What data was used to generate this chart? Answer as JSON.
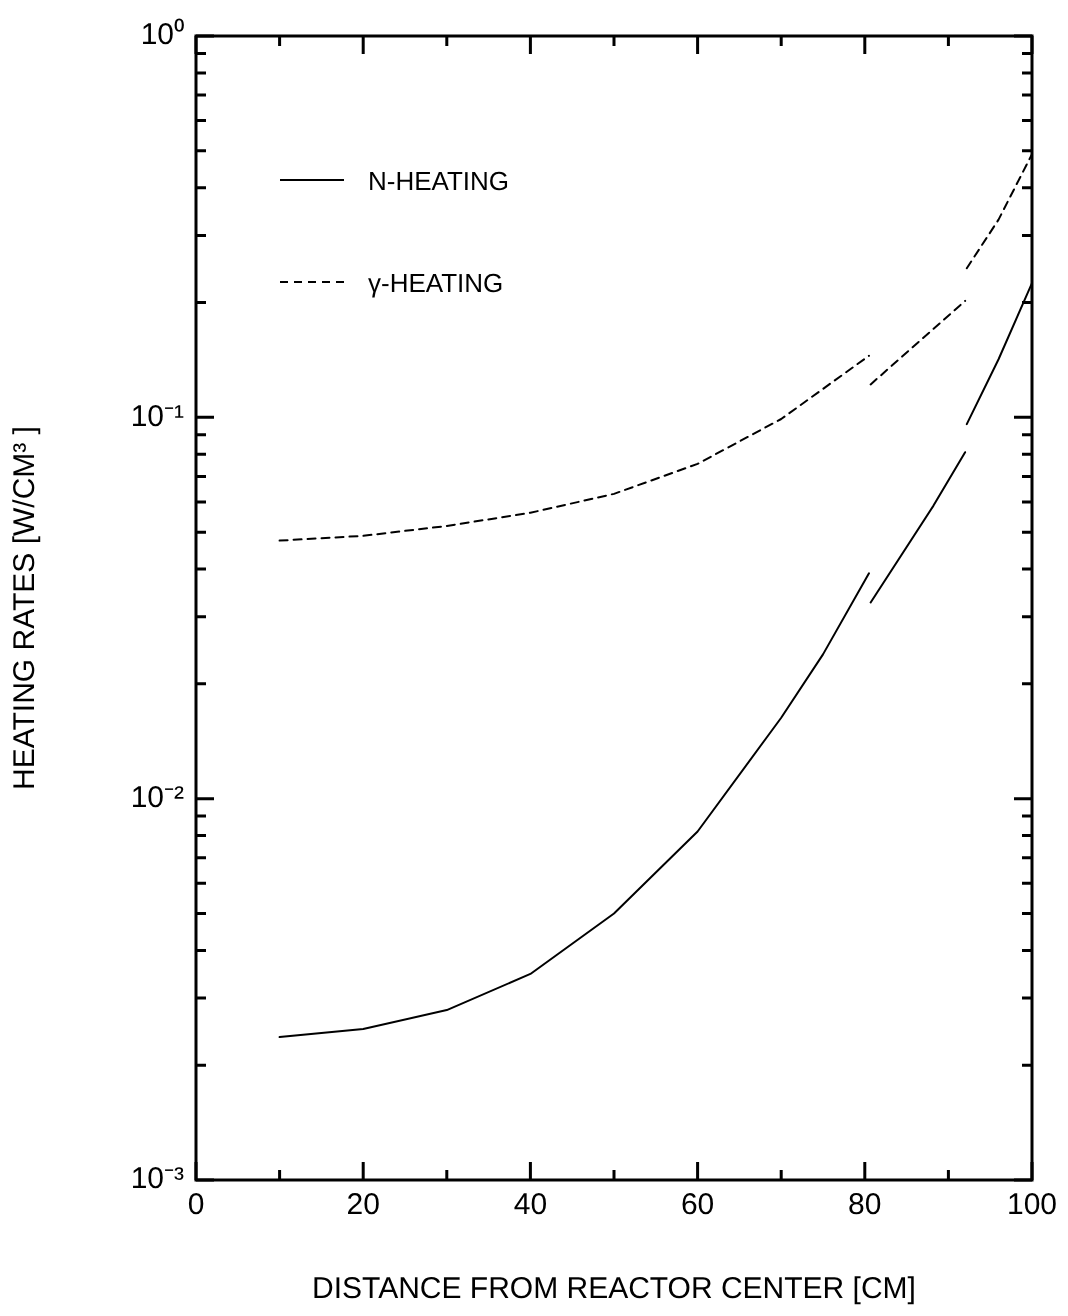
{
  "chart_data": {
    "type": "line",
    "xlabel": "DISTANCE FROM REACTOR CENTER [CM]",
    "ylabel": "HEATING RATES [W/CM³ ]",
    "xlim": [
      0,
      100
    ],
    "xticks": [
      0,
      {
        "value": 10,
        "label": null
      },
      20,
      {
        "value": 30,
        "label": null
      },
      40,
      {
        "value": 50,
        "label": null
      },
      60,
      {
        "value": 70,
        "label": null
      },
      80,
      {
        "value": 90,
        "label": null
      },
      100
    ],
    "ylim": [
      0.001,
      1
    ],
    "log": true,
    "yticks": [
      {
        "value": 0.001,
        "label": "10⁻³"
      },
      {
        "value": 0.002,
        "label": null
      },
      {
        "value": 0.003,
        "label": null
      },
      {
        "value": 0.004,
        "label": null
      },
      {
        "value": 0.005,
        "label": null
      },
      {
        "value": 0.006,
        "label": null
      },
      {
        "value": 0.007,
        "label": null
      },
      {
        "value": 0.008,
        "label": null
      },
      {
        "value": 0.009,
        "label": null
      },
      {
        "value": 0.01,
        "label": "10⁻²"
      },
      {
        "value": 0.02,
        "label": null
      },
      {
        "value": 0.03,
        "label": null
      },
      {
        "value": 0.04,
        "label": null
      },
      {
        "value": 0.05,
        "label": null
      },
      {
        "value": 0.06,
        "label": null
      },
      {
        "value": 0.07,
        "label": null
      },
      {
        "value": 0.08,
        "label": null
      },
      {
        "value": 0.09,
        "label": null
      },
      {
        "value": 0.1,
        "label": "10⁻¹"
      },
      {
        "value": 0.2,
        "label": null
      },
      {
        "value": 0.3,
        "label": null
      },
      {
        "value": 0.4,
        "label": null
      },
      {
        "value": 0.5,
        "label": null
      },
      {
        "value": 0.6,
        "label": null
      },
      {
        "value": 0.7,
        "label": null
      },
      {
        "value": 0.8,
        "label": null
      },
      {
        "value": 0.9,
        "label": null
      },
      {
        "value": 1,
        "label": "10⁰"
      }
    ],
    "grid": false,
    "legend": "top left",
    "marker": "none",
    "series": [
      {
        "name": "N-HEATING",
        "color": "#000000",
        "line_style": "solid",
        "x": [
          10,
          20,
          30,
          40,
          50,
          60,
          70,
          75,
          80.5,
          80.6,
          80.7,
          88.2,
          92,
          92.1,
          92.2,
          96,
          100
        ],
        "values": [
          0.00237,
          0.00249,
          0.00279,
          0.00347,
          0.005,
          0.0082,
          0.0163,
          0.0239,
          0.039,
          null,
          0.0327,
          0.0586,
          0.081,
          null,
          0.096,
          0.142,
          0.225
        ]
      },
      {
        "name": "γ-HEATING",
        "color": "#000000",
        "line_style": "dashed",
        "x": [
          10,
          20,
          30,
          40,
          50,
          60,
          70,
          80.5,
          80.6,
          80.7,
          92,
          92.1,
          92.2,
          96,
          100
        ],
        "values": [
          0.0475,
          0.0489,
          0.0519,
          0.0562,
          0.063,
          0.0755,
          0.099,
          0.145,
          null,
          0.122,
          0.202,
          null,
          0.246,
          0.33,
          0.49
        ]
      }
    ]
  }
}
